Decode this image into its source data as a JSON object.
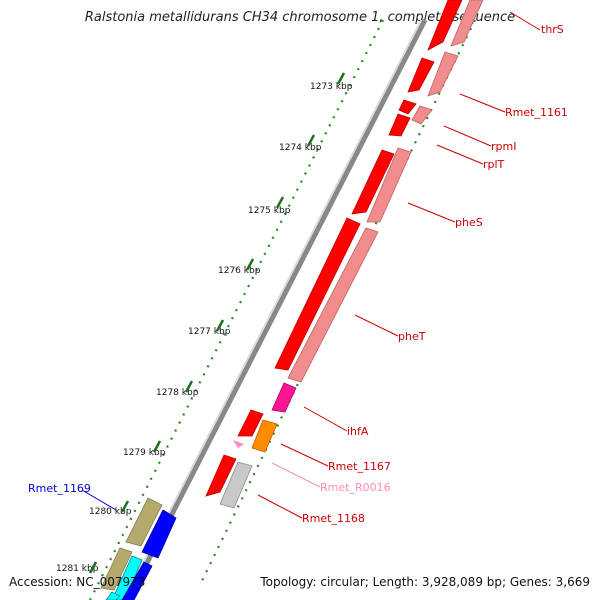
{
  "title": "Ralstonia metallidurans CH34 chromosome 1, complete sequence",
  "accession": "Accession: NC_007973",
  "topology": "Topology: circular; Length: 3,928,089 bp; Genes: 3,669",
  "ticks": [
    "1273 kbp",
    "1274 kbp",
    "1275 kbp",
    "1276 kbp",
    "1277 kbp",
    "1278 kbp",
    "1279 kbp",
    "1280 kbp",
    "1281 kbp"
  ],
  "colors": {
    "cds_forward": "#ff0000",
    "cds_reverse": "#f08c8c",
    "rRNA_pink": "#ff1493",
    "orange": "#ff8c00",
    "gray": "#c8c8c8",
    "olive": "#b4aa6e",
    "blue": "#0000ff",
    "cyan": "#00ffff",
    "label_red": "#cc0000",
    "label_blue": "#0000cc",
    "label_pink": "#ff8cb4",
    "backbone": "#888888",
    "tick_green": "#228b22"
  },
  "gene_labels": [
    {
      "name": "thrS",
      "color": "label_red"
    },
    {
      "name": "Rmet_1161",
      "color": "label_red"
    },
    {
      "name": "rpmI",
      "color": "label_red"
    },
    {
      "name": "rplT",
      "color": "label_red"
    },
    {
      "name": "pheS",
      "color": "label_red"
    },
    {
      "name": "pheT",
      "color": "label_red"
    },
    {
      "name": "ihfA",
      "color": "label_red"
    },
    {
      "name": "Rmet_1167",
      "color": "label_red"
    },
    {
      "name": "Rmet_R0016",
      "color": "label_pink"
    },
    {
      "name": "Rmet_1168",
      "color": "label_red"
    },
    {
      "name": "Rmet_1169",
      "color": "label_blue"
    }
  ]
}
